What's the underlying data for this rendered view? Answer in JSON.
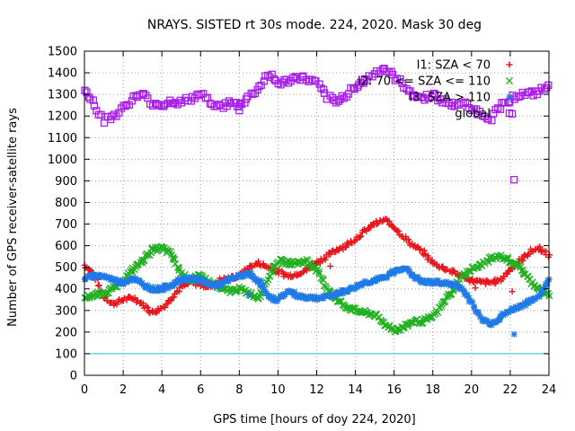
{
  "chart_data": {
    "type": "scatter",
    "title": "NRAYS. SISTED rt 30s mode. 224, 2020. Mask 30 deg",
    "xlabel": "GPS time [hours of doy 224, 2020]",
    "ylabel": "Number of GPS receiver-satellite rays",
    "xlim": [
      0,
      24
    ],
    "ylim": [
      0,
      1500
    ],
    "xticks": [
      "0",
      "2",
      "4",
      "6",
      "8",
      "10",
      "12",
      "14",
      "16",
      "18",
      "20",
      "22",
      "24"
    ],
    "yticks": [
      "0",
      "100",
      "200",
      "300",
      "400",
      "500",
      "600",
      "700",
      "800",
      "900",
      "1000",
      "1100",
      "1200",
      "1300",
      "1400",
      "1500"
    ],
    "grid": true,
    "legend_position": "top-right",
    "reference_line": {
      "y": 100,
      "color": "#22c7d6"
    },
    "series": [
      {
        "name": "I1: SZA < 70",
        "color": "#e8151a",
        "marker": "+",
        "x": [
          0,
          0.5,
          1,
          1.5,
          2,
          2.5,
          3,
          3.5,
          4,
          4.5,
          5,
          5.5,
          6,
          6.5,
          7,
          7.5,
          8,
          8.5,
          9,
          9.5,
          10,
          10.5,
          11,
          11.5,
          12,
          12.5,
          13,
          13.5,
          14,
          14.5,
          15,
          15.5,
          16,
          16.5,
          17,
          17.5,
          18,
          18.5,
          19,
          19.5,
          20,
          20.5,
          21,
          21.5,
          22,
          22.5,
          23,
          23.5,
          24
        ],
        "values": [
          510,
          470,
          360,
          330,
          350,
          360,
          330,
          290,
          310,
          360,
          410,
          430,
          420,
          410,
          440,
          450,
          460,
          500,
          520,
          500,
          480,
          460,
          470,
          490,
          520,
          550,
          580,
          600,
          630,
          670,
          700,
          720,
          690,
          640,
          600,
          570,
          520,
          500,
          480,
          460,
          440,
          430,
          430,
          440,
          490,
          530,
          570,
          590,
          550
        ],
        "outliers": [
          [
            12.7,
            505
          ],
          [
            20.2,
            405
          ],
          [
            22.1,
            388
          ]
        ]
      },
      {
        "name": "I2: 70 <= SZA <= 110",
        "color": "#21b021",
        "marker": "x",
        "x": [
          0,
          0.5,
          1,
          1.5,
          2,
          2.5,
          3,
          3.5,
          4,
          4.5,
          5,
          5.5,
          6,
          6.5,
          7,
          7.5,
          8,
          8.5,
          9,
          9.5,
          10,
          10.5,
          11,
          11.5,
          12,
          12.5,
          13,
          13.5,
          14,
          14.5,
          15,
          15.5,
          16,
          16.5,
          17,
          17.5,
          18,
          18.5,
          19,
          19.5,
          20,
          20.5,
          21,
          21.5,
          22,
          22.5,
          23,
          23.5,
          24
        ],
        "values": [
          360,
          370,
          380,
          400,
          440,
          490,
          530,
          580,
          590,
          560,
          470,
          440,
          460,
          430,
          400,
          390,
          400,
          380,
          360,
          450,
          530,
          520,
          520,
          530,
          490,
          410,
          350,
          320,
          300,
          290,
          280,
          240,
          210,
          220,
          250,
          250,
          270,
          330,
          390,
          460,
          490,
          510,
          540,
          550,
          530,
          500,
          440,
          400,
          370
        ],
        "outliers": []
      },
      {
        "name": "I3: SZA > 110",
        "color": "#1f7ae6",
        "marker": "*",
        "x": [
          0,
          0.5,
          1,
          1.5,
          2,
          2.5,
          3,
          3.5,
          4,
          4.5,
          5,
          5.5,
          6,
          6.5,
          7,
          7.5,
          8,
          8.5,
          9,
          9.5,
          10,
          10.5,
          11,
          11.5,
          12,
          12.5,
          13,
          13.5,
          14,
          14.5,
          15,
          15.5,
          16,
          16.5,
          17,
          17.5,
          18,
          18.5,
          19,
          19.5,
          20,
          20.5,
          21,
          21.5,
          22,
          22.5,
          23,
          23.5,
          24
        ],
        "values": [
          450,
          460,
          460,
          440,
          430,
          450,
          420,
          400,
          400,
          420,
          440,
          450,
          440,
          420,
          420,
          440,
          460,
          470,
          440,
          360,
          350,
          390,
          370,
          360,
          360,
          360,
          380,
          390,
          410,
          430,
          440,
          450,
          480,
          500,
          460,
          430,
          430,
          430,
          420,
          400,
          340,
          260,
          240,
          270,
          300,
          320,
          340,
          370,
          440
        ],
        "outliers": [
          [
            8.5,
            372
          ],
          [
            22.2,
            190
          ]
        ]
      },
      {
        "name": "global",
        "color": "#a81ee8",
        "marker": "square",
        "x": [
          0,
          0.5,
          1,
          1.5,
          2,
          2.5,
          3,
          3.5,
          4,
          4.5,
          5,
          5.5,
          6,
          6.5,
          7,
          7.5,
          8,
          8.5,
          9,
          9.5,
          10,
          10.5,
          11,
          11.5,
          12,
          12.5,
          13,
          13.5,
          14,
          14.5,
          15,
          15.5,
          16,
          16.5,
          17,
          17.5,
          18,
          18.5,
          19,
          19.5,
          20,
          20.5,
          21,
          21.5,
          22,
          22.5,
          23,
          23.5,
          24
        ],
        "values": [
          1330,
          1260,
          1180,
          1200,
          1240,
          1280,
          1300,
          1260,
          1250,
          1270,
          1260,
          1280,
          1300,
          1270,
          1240,
          1260,
          1250,
          1290,
          1330,
          1400,
          1350,
          1360,
          1380,
          1370,
          1350,
          1290,
          1260,
          1300,
          1340,
          1360,
          1400,
          1420,
          1380,
          1340,
          1300,
          1280,
          1300,
          1270,
          1250,
          1260,
          1240,
          1210,
          1190,
          1250,
          1280,
          1300,
          1300,
          1310,
          1340
        ],
        "outliers": [
          [
            8.0,
            1225
          ],
          [
            8.0,
            1245
          ],
          [
            22.1,
            1210
          ],
          [
            22.2,
            905
          ]
        ]
      }
    ]
  }
}
